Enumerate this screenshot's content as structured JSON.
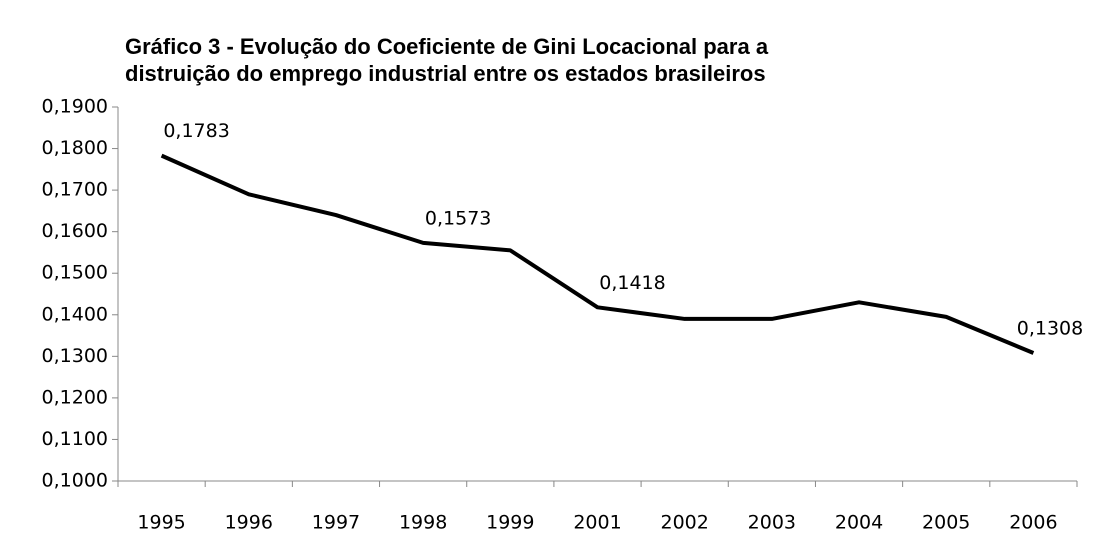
{
  "chart_data": {
    "type": "line",
    "title": [
      "Gráfico 3 - Evolução do Coeficiente de Gini Locacional para a",
      "distruição do emprego industrial entre os estados brasileiros"
    ],
    "categories": [
      "1995",
      "1996",
      "1997",
      "1998",
      "1999",
      "2001",
      "2002",
      "2003",
      "2004",
      "2005",
      "2006"
    ],
    "values": [
      0.1783,
      0.169,
      0.164,
      0.1573,
      0.1555,
      0.1418,
      0.139,
      0.139,
      0.143,
      0.1395,
      0.1308
    ],
    "value_labels": [
      "0,1783",
      null,
      null,
      "0,1573",
      null,
      "0,1418",
      null,
      null,
      null,
      null,
      "0,1308"
    ],
    "color": "#000000",
    "ylim": [
      0.1,
      0.19
    ],
    "yticks": [
      {
        "value": 0.1,
        "label": "0,1000"
      },
      {
        "value": 0.11,
        "label": "0,1100"
      },
      {
        "value": 0.12,
        "label": "0,1200"
      },
      {
        "value": 0.13,
        "label": "0,1300"
      },
      {
        "value": 0.14,
        "label": "0,1400"
      },
      {
        "value": 0.15,
        "label": "0,1500"
      },
      {
        "value": 0.16,
        "label": "0,1600"
      },
      {
        "value": 0.17,
        "label": "0,1700"
      },
      {
        "value": 0.18,
        "label": "0,1800"
      },
      {
        "value": 0.19,
        "label": "0,1900"
      }
    ],
    "grid": false
  }
}
